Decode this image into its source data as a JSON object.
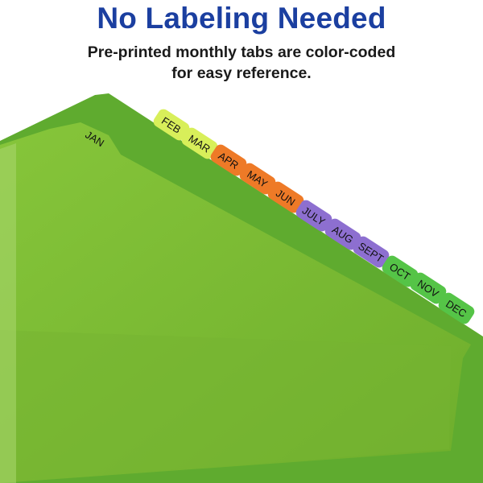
{
  "header": {
    "title": "No Labeling Needed",
    "subtitle_line1": "Pre-printed monthly tabs are color-coded",
    "subtitle_line2": "for easy reference."
  },
  "colors": {
    "title": "#1b3fa0",
    "divider_green": "#6db535",
    "front_green": "#7dbb33",
    "yellow": "#d8ef5a",
    "orange": "#ee7a27",
    "purple": "#8d6fd0",
    "green_tab": "#55c447"
  },
  "tabs": [
    {
      "label": "JAN",
      "color": "#6db535"
    },
    {
      "label": "FEB",
      "color": "#d8ef5a"
    },
    {
      "label": "MAR",
      "color": "#d8ef5a"
    },
    {
      "label": "APR",
      "color": "#ee7a27"
    },
    {
      "label": "MAY",
      "color": "#ee7a27"
    },
    {
      "label": "JUN",
      "color": "#ee7a27"
    },
    {
      "label": "JULY",
      "color": "#8d6fd0"
    },
    {
      "label": "AUG",
      "color": "#8d6fd0"
    },
    {
      "label": "SEPT",
      "color": "#8d6fd0"
    },
    {
      "label": "OCT",
      "color": "#55c447"
    },
    {
      "label": "NOV",
      "color": "#55c447"
    },
    {
      "label": "DEC",
      "color": "#55c447"
    }
  ]
}
